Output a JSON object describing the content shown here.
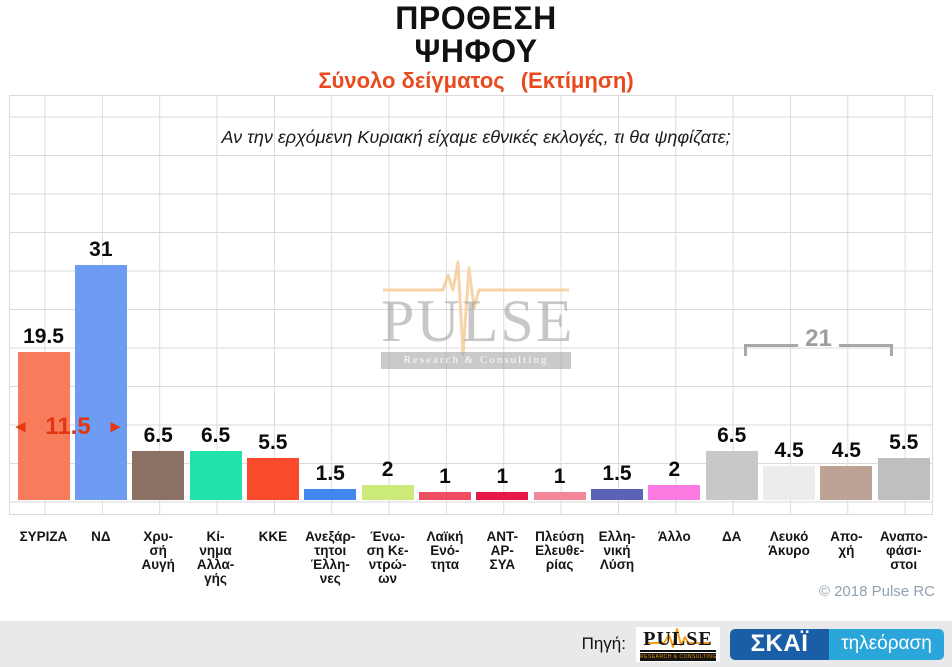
{
  "title": {
    "line1": "ΠΡΟΘΕΣΗ",
    "line2": "ΨΗΦΟΥ"
  },
  "subtitle": {
    "part1": "Σύνολο δείγματος",
    "part2": "(Εκτίμηση)",
    "color": "#E84A1E"
  },
  "question": "Αν την ερχόμενη Κυριακή είχαμε εθνικές εκλογές, τι θα ψηφίζατε;",
  "chart_data": {
    "type": "bar",
    "title": "ΠΡΟΘΕΣΗ ΨΗΦΟΥ",
    "subtitle": "Σύνολο δείγματος (Εκτίμηση)",
    "xlabel": "",
    "ylabel": "",
    "ylim": [
      0,
      52
    ],
    "gridline_interval": 5,
    "grid": true,
    "categories": [
      "ΣΥΡΙΖΑ",
      "ΝΔ",
      "Χρυσή Αυγή",
      "Κίνημα Αλλαγής",
      "ΚΚΕ",
      "Ανεξάρτητοι Έλληνες",
      "Ένωση Κεντρώων",
      "Λαϊκή Ενότητα",
      "ΑΝΤ-ΑΡ-ΣΥΑ",
      "Πλεύση Ελευθερίας",
      "Ελληνική Λύση",
      "Άλλο",
      "ΔΑ",
      "Λευκό Άκυρο",
      "Αποχή",
      "Αναποφάσιστοι"
    ],
    "values": [
      19.5,
      31,
      6.5,
      6.5,
      5.5,
      1.5,
      2,
      1,
      1,
      1,
      1.5,
      2,
      6.5,
      4.5,
      4.5,
      5.5
    ],
    "bars": [
      {
        "label": "ΣΥΡΙΖΑ",
        "label_lines": [
          "ΣΥΡΙΖΑ"
        ],
        "value": 19.5,
        "color": "#F87B5B"
      },
      {
        "label": "ΝΔ",
        "label_lines": [
          "ΝΔ"
        ],
        "value": 31,
        "color": "#6F9CF3"
      },
      {
        "label": "Χρυσή Αυγή",
        "label_lines": [
          "Χρυ-",
          "σή",
          "Αυγή"
        ],
        "value": 6.5,
        "color": "#8B7163"
      },
      {
        "label": "Κίνημα Αλλαγής",
        "label_lines": [
          "Κί-",
          "νημα",
          "Αλλα-",
          "γής"
        ],
        "value": 6.5,
        "color": "#23E3AC"
      },
      {
        "label": "ΚΚΕ",
        "label_lines": [
          "ΚΚΕ"
        ],
        "value": 5.5,
        "color": "#F94A2C"
      },
      {
        "label": "Ανεξάρτητοι Έλληνες",
        "label_lines": [
          "Ανεξάρ-",
          "τητοι",
          "Έλλη-",
          "νες"
        ],
        "value": 1.5,
        "color": "#4287EE"
      },
      {
        "label": "Ένωση Κεντρώων",
        "label_lines": [
          "Ένω-",
          "ση Κε-",
          "ντρώ-",
          "ων"
        ],
        "value": 2,
        "color": "#CBEA79"
      },
      {
        "label": "Λαϊκή Ενότητα",
        "label_lines": [
          "Λαϊκή",
          "Ενό-",
          "τητα"
        ],
        "value": 1,
        "color": "#EE4D62"
      },
      {
        "label": "ΑΝΤ-ΑΡ-ΣΥΑ",
        "label_lines": [
          "ΑΝΤ-",
          "ΑΡ-",
          "ΣΥΑ"
        ],
        "value": 1,
        "color": "#E61A46"
      },
      {
        "label": "Πλεύση Ελευθερίας",
        "label_lines": [
          "Πλεύση",
          "Ελευθε-",
          "ρίας"
        ],
        "value": 1,
        "color": "#F2879B"
      },
      {
        "label": "Ελληνική Λύση",
        "label_lines": [
          "Ελλη-",
          "νική",
          "Λύση"
        ],
        "value": 1.5,
        "color": "#5A63B5"
      },
      {
        "label": "Άλλο",
        "label_lines": [
          "Άλλο"
        ],
        "value": 2,
        "color": "#FB7BE2"
      },
      {
        "label": "ΔΑ",
        "label_lines": [
          "ΔΑ"
        ],
        "value": 6.5,
        "color": "#C8C8C8"
      },
      {
        "label": "Λευκό Άκυρο",
        "label_lines": [
          "Λευκό",
          "Άκυρο"
        ],
        "value": 4.5,
        "color": "#ECECEC"
      },
      {
        "label": "Αποχή",
        "label_lines": [
          "Απο-",
          "χή"
        ],
        "value": 4.5,
        "color": "#BCA396"
      },
      {
        "label": "Αναποφάσιστοι",
        "label_lines": [
          "Αναπο-",
          "φάσι-",
          "στοι"
        ],
        "value": 5.5,
        "color": "#BFBFBF"
      }
    ],
    "annotations": {
      "difference": {
        "left_arrow": "◄",
        "value": "11.5",
        "right_arrow": "►",
        "color": "#E23710"
      },
      "sum": {
        "value": "21",
        "color": "#9E9E9E"
      }
    }
  },
  "watermark": {
    "name": "PULSE",
    "tagline": "Research  &  Consulting"
  },
  "copyright": "© 2018 Pulse RC",
  "footer": {
    "source_label": "Πηγή:",
    "pulse_logo": {
      "name": "PULSE",
      "tagline": "RESEARCH & CONSULTING"
    },
    "skai_logo": {
      "name": "ΣΚΑΪ",
      "suffix": "τηλεόραση",
      "dark_color": "#1B5EA8",
      "light_color": "#2AA6DB"
    }
  }
}
